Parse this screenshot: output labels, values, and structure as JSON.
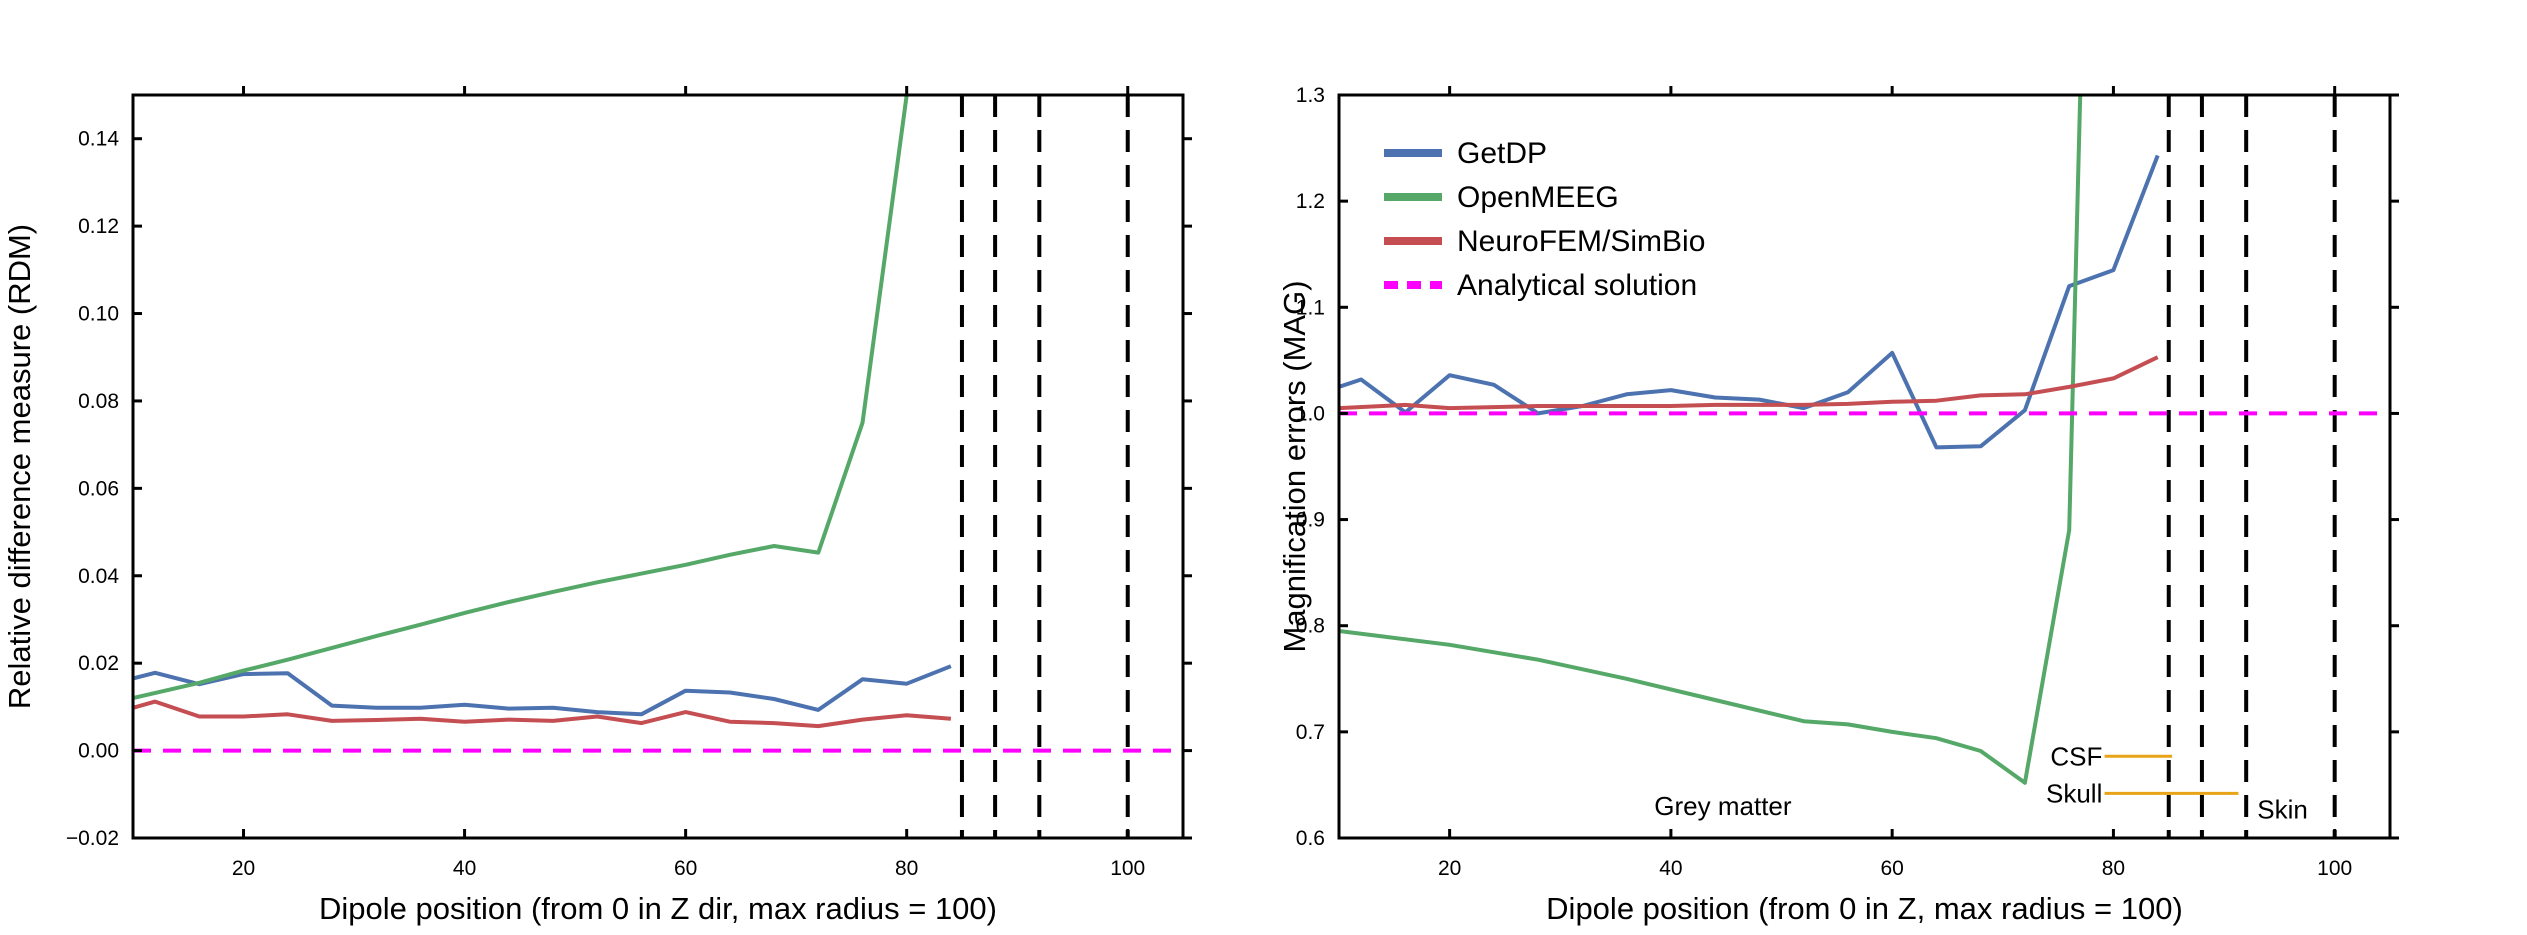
{
  "chart_data": [
    {
      "type": "line",
      "xlabel": "Dipole position (from 0 in Z dir, max radius = 100)",
      "ylabel": "Relative difference measure (RDM)",
      "xlim": [
        10,
        105
      ],
      "ylim": [
        -0.02,
        0.15
      ],
      "xticks": [
        20,
        40,
        60,
        80,
        100
      ],
      "yticks": [
        -0.02,
        0.0,
        0.02,
        0.04,
        0.06,
        0.08,
        0.1,
        0.12,
        0.14
      ],
      "ytick_labels": [
        "−0.02",
        "0.00",
        "0.02",
        "0.04",
        "0.06",
        "0.08",
        "0.10",
        "0.12",
        "0.14"
      ],
      "grid": false,
      "legend": "none",
      "series": [
        {
          "name": "GetDP",
          "color": "#4c72b0",
          "x": [
            10,
            12,
            16,
            20,
            24,
            28,
            32,
            36,
            40,
            44,
            48,
            52,
            56,
            60,
            64,
            68,
            72,
            76,
            80,
            84
          ],
          "y": [
            0.0165,
            0.0178,
            0.0152,
            0.0175,
            0.0177,
            0.0103,
            0.0098,
            0.0098,
            0.0105,
            0.0096,
            0.0098,
            0.0088,
            0.0083,
            0.0137,
            0.0133,
            0.0118,
            0.0093,
            0.0163,
            0.0153,
            0.0193
          ]
        },
        {
          "name": "OpenMEEG",
          "color": "#55a868",
          "x": [
            10,
            16,
            20,
            24,
            28,
            32,
            36,
            40,
            44,
            48,
            52,
            56,
            60,
            64,
            68,
            72,
            76,
            80
          ],
          "y": [
            0.012,
            0.0155,
            0.0183,
            0.0208,
            0.0235,
            0.0262,
            0.0288,
            0.0315,
            0.034,
            0.0363,
            0.0385,
            0.0405,
            0.0425,
            0.0448,
            0.0468,
            0.0453,
            0.075,
            0.15
          ]
        },
        {
          "name": "NeuroFEM/SimBio",
          "color": "#c44e52",
          "x": [
            10,
            12,
            16,
            20,
            24,
            28,
            32,
            36,
            40,
            44,
            48,
            52,
            56,
            60,
            64,
            68,
            72,
            76,
            80,
            84
          ],
          "y": [
            0.0098,
            0.0112,
            0.0078,
            0.0078,
            0.0083,
            0.0068,
            0.007,
            0.0073,
            0.0066,
            0.0071,
            0.0068,
            0.0078,
            0.0063,
            0.0088,
            0.0066,
            0.0063,
            0.0056,
            0.0071,
            0.0081,
            0.0073
          ]
        },
        {
          "name": "Analytical solution",
          "color": "#ff00ff",
          "style": "dashed",
          "x": [
            10,
            105
          ],
          "y": [
            0.0,
            0.0
          ]
        }
      ],
      "vlines": [
        85,
        88,
        92,
        100
      ]
    },
    {
      "type": "line",
      "xlabel": "Dipole position (from 0 in Z, max radius = 100)",
      "ylabel": "Magnification errors (MAG)",
      "xlim": [
        10,
        105
      ],
      "ylim": [
        0.6,
        1.3
      ],
      "xticks": [
        20,
        40,
        60,
        80,
        100
      ],
      "yticks": [
        0.6,
        0.7,
        0.8,
        0.9,
        1.0,
        1.1,
        1.2,
        1.3
      ],
      "ytick_labels": [
        "0.6",
        "0.7",
        "0.8",
        "0.9",
        "1.0",
        "1.1",
        "1.2",
        "1.3"
      ],
      "grid": false,
      "legend": "top-left",
      "series": [
        {
          "name": "GetDP",
          "color": "#4c72b0",
          "x": [
            10,
            12,
            16,
            20,
            24,
            28,
            32,
            36,
            40,
            44,
            48,
            52,
            56,
            60,
            64,
            68,
            72,
            76,
            80,
            84
          ],
          "y": [
            1.025,
            1.032,
            1.001,
            1.036,
            1.027,
            1.0,
            1.007,
            1.018,
            1.022,
            1.015,
            1.013,
            1.005,
            1.02,
            1.057,
            0.968,
            0.969,
            1.003,
            1.12,
            1.135,
            1.243
          ]
        },
        {
          "name": "OpenMEEG",
          "color": "#55a868",
          "x": [
            10,
            20,
            28,
            36,
            44,
            52,
            56,
            60,
            64,
            68,
            72,
            76,
            77
          ],
          "y": [
            0.795,
            0.782,
            0.768,
            0.75,
            0.73,
            0.71,
            0.707,
            0.7,
            0.694,
            0.682,
            0.652,
            0.89,
            1.3
          ]
        },
        {
          "name": "NeuroFEM/SimBio",
          "color": "#c44e52",
          "x": [
            10,
            16,
            20,
            24,
            28,
            32,
            36,
            40,
            44,
            48,
            52,
            56,
            60,
            64,
            68,
            72,
            76,
            80,
            84
          ],
          "y": [
            1.005,
            1.008,
            1.005,
            1.006,
            1.007,
            1.007,
            1.007,
            1.007,
            1.008,
            1.008,
            1.008,
            1.009,
            1.011,
            1.012,
            1.017,
            1.018,
            1.025,
            1.033,
            1.053
          ]
        },
        {
          "name": "Analytical solution",
          "color": "#ff00ff",
          "style": "dashed",
          "x": [
            10,
            105
          ],
          "y": [
            1.0,
            1.0
          ]
        }
      ],
      "vlines": [
        85,
        88,
        92,
        100
      ],
      "annotations": [
        {
          "text": "Grey matter",
          "x": 38.5,
          "y": 0.63
        },
        {
          "text": "CSF",
          "x": 79,
          "y": 0.677,
          "anchor": "end"
        },
        {
          "text": "Skull",
          "x": 79,
          "y": 0.642,
          "anchor": "end"
        },
        {
          "text": "Skin",
          "x": 93,
          "y": 0.627,
          "anchor": "start"
        }
      ],
      "segments": [
        {
          "x": [
            79.2,
            85.3
          ],
          "y": 0.677,
          "color": "#e8a317"
        },
        {
          "x": [
            79.2,
            91.3
          ],
          "y": 0.642,
          "color": "#e8a317"
        }
      ]
    }
  ]
}
